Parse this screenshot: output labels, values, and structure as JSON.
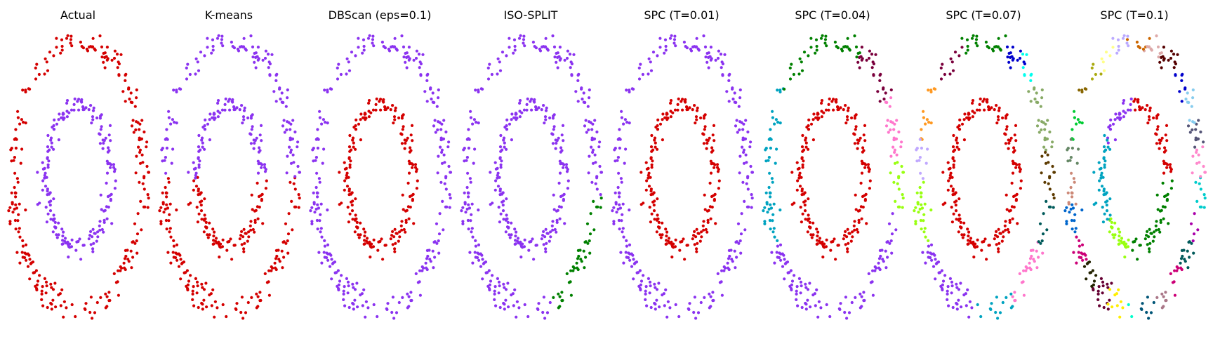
{
  "chart_data": [
    {
      "type": "scatter",
      "title": "Actual",
      "clusters": [
        {
          "ring": "outer",
          "from": 0,
          "to": 360,
          "color": "#d40000"
        },
        {
          "ring": "inner",
          "from": 0,
          "to": 360,
          "color": "#8b33f0"
        }
      ]
    },
    {
      "type": "scatter",
      "title": "K-means",
      "clusters": [
        {
          "ring": "outer",
          "from": 0,
          "to": 180,
          "color": "#d40000"
        },
        {
          "ring": "outer",
          "from": 180,
          "to": 360,
          "color": "#8b33f0"
        },
        {
          "ring": "inner",
          "from": 0,
          "to": 180,
          "color": "#d40000"
        },
        {
          "ring": "inner",
          "from": 180,
          "to": 360,
          "color": "#8b33f0"
        }
      ]
    },
    {
      "type": "scatter",
      "title": "DBScan (eps=0.1)",
      "clusters": [
        {
          "ring": "outer",
          "from": 0,
          "to": 360,
          "color": "#8b33f0"
        },
        {
          "ring": "inner",
          "from": 0,
          "to": 360,
          "color": "#d40000"
        }
      ]
    },
    {
      "type": "scatter",
      "title": "ISO-SPLIT",
      "clusters": [
        {
          "ring": "outer",
          "from": 8,
          "to": 70,
          "color": "#008000"
        },
        {
          "ring": "outer",
          "from": 70,
          "to": 368,
          "color": "#8b33f0"
        },
        {
          "ring": "inner",
          "from": 0,
          "to": 360,
          "color": "#8b33f0"
        }
      ]
    },
    {
      "type": "scatter",
      "title": "SPC (T=0.01)",
      "clusters": [
        {
          "ring": "outer",
          "from": 0,
          "to": 360,
          "color": "#8b33f0"
        },
        {
          "ring": "inner",
          "from": 0,
          "to": 360,
          "color": "#d40000"
        }
      ]
    },
    {
      "type": "scatter",
      "title": "SPC (T=0.04)",
      "clusters": [
        {
          "ring": "outer",
          "from": -8,
          "to": 15,
          "color": "#99ff11"
        },
        {
          "ring": "outer",
          "from": 15,
          "to": 150,
          "color": "#8b33f0"
        },
        {
          "ring": "outer",
          "from": 150,
          "to": 220,
          "color": "#00a3c0"
        },
        {
          "ring": "outer",
          "from": 220,
          "to": 295,
          "color": "#008000"
        },
        {
          "ring": "outer",
          "from": 295,
          "to": 325,
          "color": "#7a003c"
        },
        {
          "ring": "outer",
          "from": 325,
          "to": 352,
          "color": "#ff77cc"
        },
        {
          "ring": "inner",
          "from": 0,
          "to": 360,
          "color": "#d40000"
        }
      ]
    },
    {
      "type": "scatter",
      "title": "SPC (T=0.07)",
      "clusters": [
        {
          "ring": "outer",
          "from": -12,
          "to": 10,
          "color": "#5c3a00"
        },
        {
          "ring": "outer",
          "from": 10,
          "to": 30,
          "color": "#005a5a"
        },
        {
          "ring": "outer",
          "from": 30,
          "to": 65,
          "color": "#ff77cc"
        },
        {
          "ring": "outer",
          "from": 65,
          "to": 100,
          "color": "#00a3c0"
        },
        {
          "ring": "outer",
          "from": 100,
          "to": 148,
          "color": "#8b33f0"
        },
        {
          "ring": "outer",
          "from": 148,
          "to": 178,
          "color": "#99ff11"
        },
        {
          "ring": "outer",
          "from": 178,
          "to": 196,
          "color": "#c0a8ff"
        },
        {
          "ring": "outer",
          "from": 196,
          "to": 222,
          "color": "#ff9922"
        },
        {
          "ring": "outer",
          "from": 222,
          "to": 252,
          "color": "#7a003c"
        },
        {
          "ring": "outer",
          "from": 252,
          "to": 290,
          "color": "#008000"
        },
        {
          "ring": "outer",
          "from": 290,
          "to": 305,
          "color": "#0000cc"
        },
        {
          "ring": "outer",
          "from": 305,
          "to": 318,
          "color": "#00ffee"
        },
        {
          "ring": "outer",
          "from": 318,
          "to": 348,
          "color": "#88aa66"
        },
        {
          "ring": "inner",
          "from": 0,
          "to": 360,
          "color": "#d40000"
        }
      ]
    },
    {
      "type": "scatter",
      "title": "SPC (T=0.1)",
      "clusters": [
        {
          "ring": "outer",
          "from": -14,
          "to": 0,
          "color": "#ff88cc"
        },
        {
          "ring": "outer",
          "from": 0,
          "to": 14,
          "color": "#00cccc"
        },
        {
          "ring": "outer",
          "from": 14,
          "to": 28,
          "color": "#aa00aa"
        },
        {
          "ring": "outer",
          "from": 28,
          "to": 42,
          "color": "#005a5a"
        },
        {
          "ring": "outer",
          "from": 42,
          "to": 56,
          "color": "#cc0077"
        },
        {
          "ring": "outer",
          "from": 56,
          "to": 70,
          "color": "#aa7788"
        },
        {
          "ring": "outer",
          "from": 70,
          "to": 84,
          "color": "#005577"
        },
        {
          "ring": "outer",
          "from": 84,
          "to": 98,
          "color": "#00ffcc"
        },
        {
          "ring": "outer",
          "from": 98,
          "to": 112,
          "color": "#ffee00"
        },
        {
          "ring": "outer",
          "from": 112,
          "to": 126,
          "color": "#660033"
        },
        {
          "ring": "outer",
          "from": 126,
          "to": 140,
          "color": "#222200"
        },
        {
          "ring": "outer",
          "from": 140,
          "to": 154,
          "color": "#cc0077"
        },
        {
          "ring": "outer",
          "from": 154,
          "to": 168,
          "color": "#0066cc"
        },
        {
          "ring": "outer",
          "from": 168,
          "to": 182,
          "color": "#cc8877"
        },
        {
          "ring": "outer",
          "from": 182,
          "to": 196,
          "color": "#668866"
        },
        {
          "ring": "outer",
          "from": 196,
          "to": 210,
          "color": "#00cc33"
        },
        {
          "ring": "outer",
          "from": 210,
          "to": 224,
          "color": "#886600"
        },
        {
          "ring": "outer",
          "from": 224,
          "to": 238,
          "color": "#aaaa11"
        },
        {
          "ring": "outer",
          "from": 238,
          "to": 252,
          "color": "#ffff88"
        },
        {
          "ring": "outer",
          "from": 252,
          "to": 266,
          "color": "#bbaaff"
        },
        {
          "ring": "outer",
          "from": 266,
          "to": 280,
          "color": "#cc6600"
        },
        {
          "ring": "outer",
          "from": 280,
          "to": 294,
          "color": "#ddaaaa"
        },
        {
          "ring": "outer",
          "from": 294,
          "to": 308,
          "color": "#550000"
        },
        {
          "ring": "outer",
          "from": 308,
          "to": 322,
          "color": "#0000cc"
        },
        {
          "ring": "outer",
          "from": 322,
          "to": 336,
          "color": "#88ccee"
        },
        {
          "ring": "outer",
          "from": 336,
          "to": 346,
          "color": "#555577"
        },
        {
          "ring": "inner",
          "from": 0,
          "to": 100,
          "color": "#008000"
        },
        {
          "ring": "inner",
          "from": 100,
          "to": 140,
          "color": "#99ff11"
        },
        {
          "ring": "inner",
          "from": 140,
          "to": 215,
          "color": "#00a3c0"
        },
        {
          "ring": "inner",
          "from": 215,
          "to": 265,
          "color": "#8b33f0"
        },
        {
          "ring": "inner",
          "from": 265,
          "to": 360,
          "color": "#d40000"
        }
      ]
    }
  ]
}
